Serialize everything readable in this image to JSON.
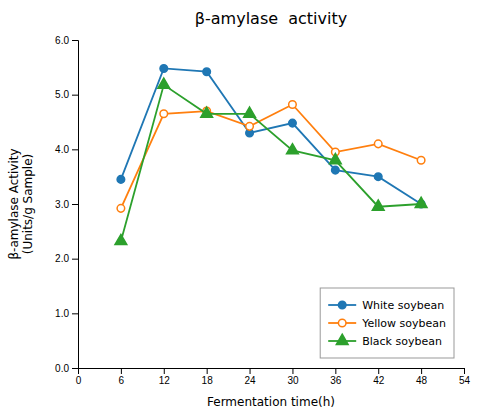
{
  "chart_data": {
    "type": "line",
    "title": "β-amylase  activity",
    "xlabel": "Fermentation time(h)",
    "ylabel": "β-amylase Activity\n(Units/g Sample)",
    "x": [
      6,
      12,
      18,
      24,
      30,
      36,
      42,
      48
    ],
    "series": [
      {
        "name": "White soybean",
        "marker": "circle",
        "values": [
          3.45,
          5.48,
          5.42,
          4.3,
          4.48,
          3.62,
          3.5,
          3.0
        ]
      },
      {
        "name": "Yellow soybean",
        "marker": "open-circle",
        "values": [
          2.92,
          4.65,
          4.7,
          4.42,
          4.82,
          3.95,
          4.1,
          3.8
        ]
      },
      {
        "name": "Black soybean",
        "marker": "triangle",
        "values": [
          2.32,
          5.18,
          4.65,
          4.65,
          3.98,
          3.8,
          2.95,
          3.0
        ]
      }
    ],
    "xlim": [
      0,
      54
    ],
    "ylim": [
      0.0,
      6.0
    ],
    "xticks": [
      0,
      6,
      12,
      18,
      24,
      30,
      36,
      42,
      48,
      54
    ],
    "yticks": [
      {
        "value": 0,
        "label": "0.0"
      },
      {
        "value": 1,
        "label": "1.0"
      },
      {
        "value": 2,
        "label": "2.0"
      },
      {
        "value": 3,
        "label": "3.0"
      },
      {
        "value": 4,
        "label": "4.0"
      },
      {
        "value": 5,
        "label": "5.0"
      },
      {
        "value": 6,
        "label": "6.0"
      }
    ],
    "grid": false,
    "legend": "lower right"
  }
}
